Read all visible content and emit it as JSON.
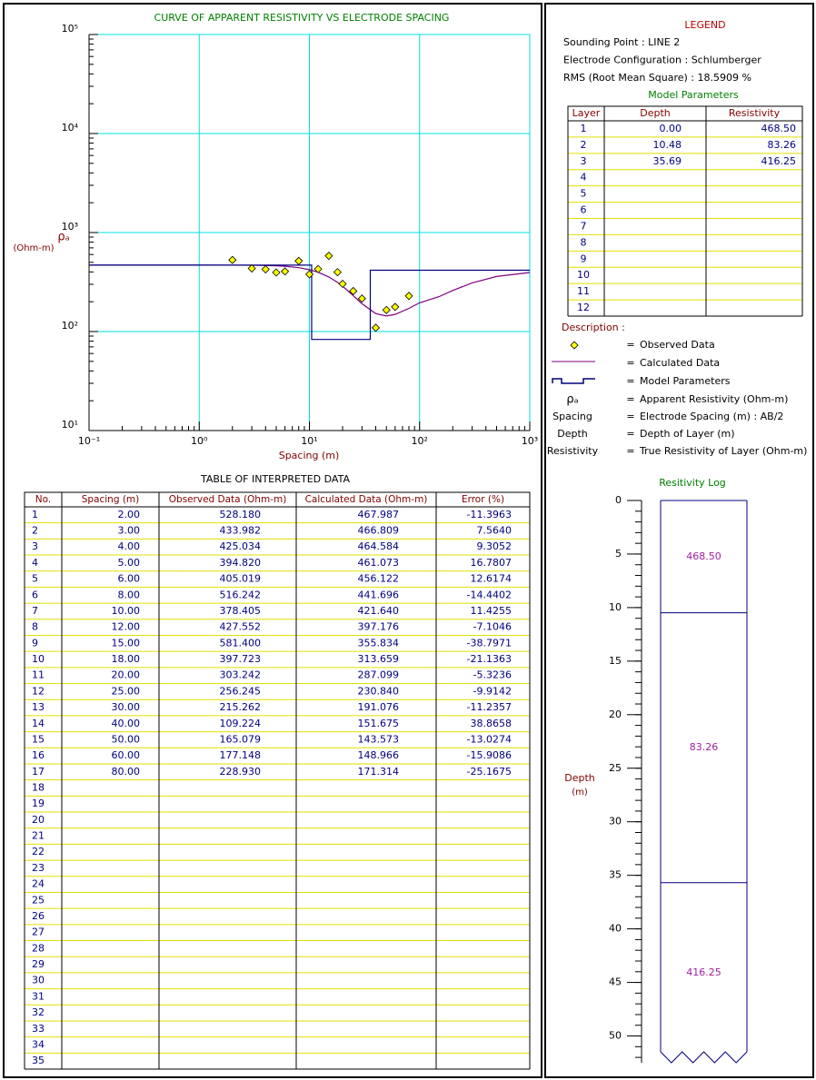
{
  "chart_data": [
    {
      "type": "line",
      "title": "CURVE OF APPARENT RESISTIVITY VS ELECTRODE SPACING",
      "x_label": "Spacing (m)",
      "y_label": "ρₐ",
      "y_unit": "(Ohm-m)",
      "log_x": true,
      "log_y": true,
      "grid": true,
      "minor_ticks": true,
      "grid_color": "#00e0e0",
      "xlim": [
        0.1,
        1000
      ],
      "xticks": [
        {
          "value": 0.1,
          "label": "10⁻¹"
        },
        {
          "value": 1,
          "label": "10⁰"
        },
        {
          "value": 10,
          "label": "10¹"
        },
        {
          "value": 100,
          "label": "10²"
        },
        {
          "value": 1000,
          "label": "10³"
        }
      ],
      "ylim": [
        10,
        100000
      ],
      "yticks": [
        {
          "value": 10,
          "label": "10¹"
        },
        {
          "value": 100,
          "label": "10²"
        },
        {
          "value": 1000,
          "label": "10³"
        },
        {
          "value": 10000,
          "label": "10⁴"
        },
        {
          "value": 100000,
          "label": "10⁵"
        }
      ],
      "series": [
        {
          "name": "Observed Data",
          "type": "scatter",
          "color": "#ffff00",
          "x": [
            2,
            3,
            4,
            5,
            6,
            8,
            10,
            12,
            15,
            18,
            20,
            25,
            30,
            40,
            50,
            60,
            80
          ],
          "values": [
            528.18,
            433.982,
            425.034,
            394.82,
            405.019,
            516.242,
            378.405,
            427.552,
            581.4,
            397.723,
            303.242,
            256.245,
            215.262,
            109.224,
            165.079,
            177.148,
            228.93
          ]
        },
        {
          "name": "Calculated Data",
          "type": "line",
          "color": "#800080",
          "x": [
            0.1,
            0.5,
            1,
            2,
            3,
            4,
            5,
            6,
            8,
            10,
            12,
            15,
            18,
            20,
            25,
            30,
            40,
            50,
            60,
            80,
            100,
            150,
            200,
            300,
            500,
            1000
          ],
          "values": [
            468.5,
            468.5,
            468.4,
            467.987,
            466.809,
            464.584,
            461.073,
            456.122,
            441.696,
            421.64,
            397.176,
            355.834,
            313.659,
            287.099,
            230.84,
            191.076,
            151.675,
            143.573,
            148.966,
            171.314,
            195,
            225,
            260,
            310,
            360,
            395
          ]
        },
        {
          "name": "Model Parameters",
          "type": "step",
          "color": "#000080",
          "x": [
            0.1,
            10.48,
            10.48,
            35.69,
            35.69,
            1000
          ],
          "values": [
            468.5,
            468.5,
            83.26,
            83.26,
            416.25,
            416.25
          ]
        }
      ]
    },
    {
      "type": "layers",
      "title": "Resitivity Log",
      "y_label": "Depth",
      "y_unit": "(m)",
      "ylim": [
        0,
        52.5
      ],
      "yticks": [
        0,
        5,
        10,
        15,
        20,
        25,
        30,
        35,
        40,
        45,
        50
      ],
      "minor_tick_step": 1,
      "depths": [
        0,
        10.48,
        35.69
      ],
      "values": [
        468.5,
        83.26,
        416.25
      ],
      "value_labels": [
        "468.50",
        "83.26",
        "416.25"
      ],
      "color": "#000080",
      "label_color": "#a020a0"
    }
  ],
  "legend": {
    "title": "LEGEND",
    "info": [
      "Sounding Point : LINE 2",
      "Electrode Configuration : Schlumberger",
      "RMS (Root Mean Square) : 18.5909 %"
    ],
    "model_title": "Model Parameters",
    "model_table": {
      "header": [
        "Layer",
        "Depth",
        "Resistivity"
      ],
      "rows": [
        [
          "1",
          "0.00",
          "468.50"
        ],
        [
          "2",
          "10.48",
          "83.26"
        ],
        [
          "3",
          "35.69",
          "416.25"
        ],
        [
          "4"
        ],
        [
          "5"
        ],
        [
          "6"
        ],
        [
          "7"
        ],
        [
          "8"
        ],
        [
          "9"
        ],
        [
          "10"
        ],
        [
          "11"
        ],
        [
          "12"
        ]
      ]
    },
    "description": {
      "title": "Description :",
      "separator": "=",
      "items": [
        {
          "label": "ρₐ",
          "text": "Apparent Resistivity (Ohm-m)"
        },
        {
          "label": "Spacing",
          "text": "Electrode Spacing (m)  :  AB/2"
        },
        {
          "label": "Depth",
          "text": "Depth of Layer (m)"
        },
        {
          "label": "Resistivity",
          "text": "True Resistivity of Layer (Ohm-m)"
        }
      ]
    }
  },
  "table": {
    "title": "TABLE OF INTERPRETED DATA",
    "header": [
      "No.",
      "Spacing (m)",
      "Observed Data (Ohm-m)",
      "Calculated Data (Ohm-m)",
      "Error (%)"
    ],
    "rows": [
      [
        "1",
        "2.00",
        "528.180",
        "467.987",
        "-11.3963"
      ],
      [
        "2",
        "3.00",
        "433.982",
        "466.809",
        "7.5640"
      ],
      [
        "3",
        "4.00",
        "425.034",
        "464.584",
        "9.3052"
      ],
      [
        "4",
        "5.00",
        "394.820",
        "461.073",
        "16.7807"
      ],
      [
        "5",
        "6.00",
        "405.019",
        "456.122",
        "12.6174"
      ],
      [
        "6",
        "8.00",
        "516.242",
        "441.696",
        "-14.4402"
      ],
      [
        "7",
        "10.00",
        "378.405",
        "421.640",
        "11.4255"
      ],
      [
        "8",
        "12.00",
        "427.552",
        "397.176",
        "-7.1046"
      ],
      [
        "9",
        "15.00",
        "581.400",
        "355.834",
        "-38.7971"
      ],
      [
        "10",
        "18.00",
        "397.723",
        "313.659",
        "-21.1363"
      ],
      [
        "11",
        "20.00",
        "303.242",
        "287.099",
        "-5.3236"
      ],
      [
        "12",
        "25.00",
        "256.245",
        "230.840",
        "-9.9142"
      ],
      [
        "13",
        "30.00",
        "215.262",
        "191.076",
        "-11.2357"
      ],
      [
        "14",
        "40.00",
        "109.224",
        "151.675",
        "38.8658"
      ],
      [
        "15",
        "50.00",
        "165.079",
        "143.573",
        "-13.0274"
      ],
      [
        "16",
        "60.00",
        "177.148",
        "148.966",
        "-15.9086"
      ],
      [
        "17",
        "80.00",
        "228.930",
        "171.314",
        "-25.1675"
      ],
      [
        "18"
      ],
      [
        "19"
      ],
      [
        "20"
      ],
      [
        "21"
      ],
      [
        "22"
      ],
      [
        "23"
      ],
      [
        "24"
      ],
      [
        "25"
      ],
      [
        "26"
      ],
      [
        "27"
      ],
      [
        "28"
      ],
      [
        "29"
      ],
      [
        "30"
      ],
      [
        "31"
      ],
      [
        "32"
      ],
      [
        "33"
      ],
      [
        "34"
      ],
      [
        "35"
      ]
    ]
  }
}
